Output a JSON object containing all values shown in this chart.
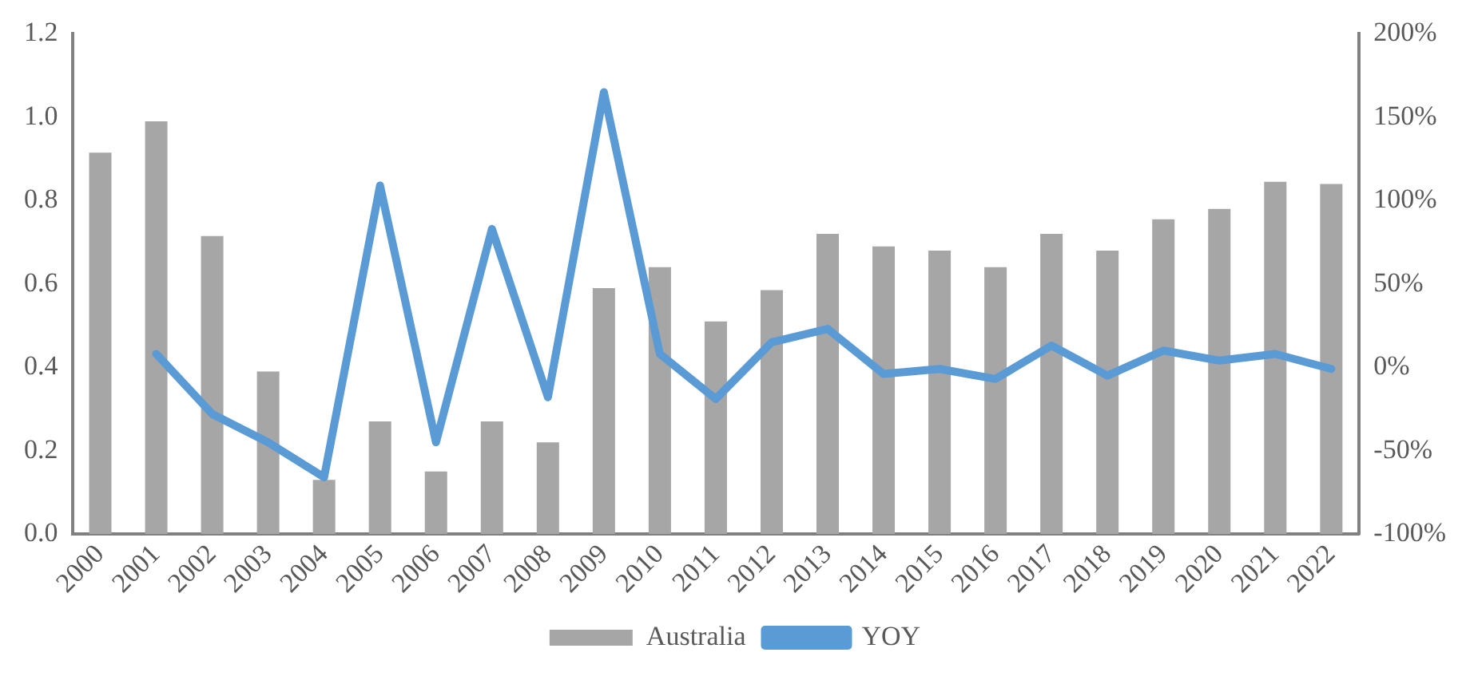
{
  "chart_data": {
    "type": "bar",
    "categories": [
      "2000",
      "2001",
      "2002",
      "2003",
      "2004",
      "2005",
      "2006",
      "2007",
      "2008",
      "2009",
      "2010",
      "2011",
      "2012",
      "2013",
      "2014",
      "2015",
      "2016",
      "2017",
      "2018",
      "2019",
      "2020",
      "2021",
      "2022"
    ],
    "series": [
      {
        "name": "Australia",
        "color": "#a6a6a6",
        "values": [
          0.915,
          0.99,
          0.715,
          0.39,
          0.13,
          0.27,
          0.15,
          0.27,
          0.22,
          0.59,
          0.64,
          0.51,
          0.585,
          0.72,
          0.69,
          0.68,
          0.64,
          0.72,
          0.68,
          0.755,
          0.78,
          0.845,
          0.84
        ]
      },
      {
        "name": "YOY",
        "type": "line",
        "axis": "y2",
        "color": "#5b9bd5",
        "values": [
          null,
          8,
          -28,
          -45,
          -66,
          109,
          -45,
          83,
          -18,
          165,
          8,
          -19,
          15,
          23,
          -4,
          -1,
          -7,
          13,
          -5,
          10,
          4,
          8,
          -1
        ]
      }
    ],
    "ylim": [
      0,
      1.2
    ],
    "yticks": [
      {
        "value": 0,
        "label": "0.0"
      },
      {
        "value": 0.2,
        "label": "0.2"
      },
      {
        "value": 0.4,
        "label": "0.4"
      },
      {
        "value": 0.6,
        "label": "0.6"
      },
      {
        "value": 0.8,
        "label": "0.8"
      },
      {
        "value": 1,
        "label": "1.0"
      },
      {
        "value": 1.2,
        "label": "1.2"
      }
    ],
    "y2lim": [
      -100,
      200
    ],
    "y2ticks": [
      {
        "value": -100,
        "label": "-100%"
      },
      {
        "value": -50,
        "label": "-50%"
      },
      {
        "value": 0,
        "label": "0%"
      },
      {
        "value": 50,
        "label": "50%"
      },
      {
        "value": 100,
        "label": "100%"
      },
      {
        "value": 150,
        "label": "150%"
      },
      {
        "value": 200,
        "label": "200%"
      }
    ],
    "grid": false,
    "legend": "bottom",
    "marker": "none",
    "line_style": "solid"
  }
}
